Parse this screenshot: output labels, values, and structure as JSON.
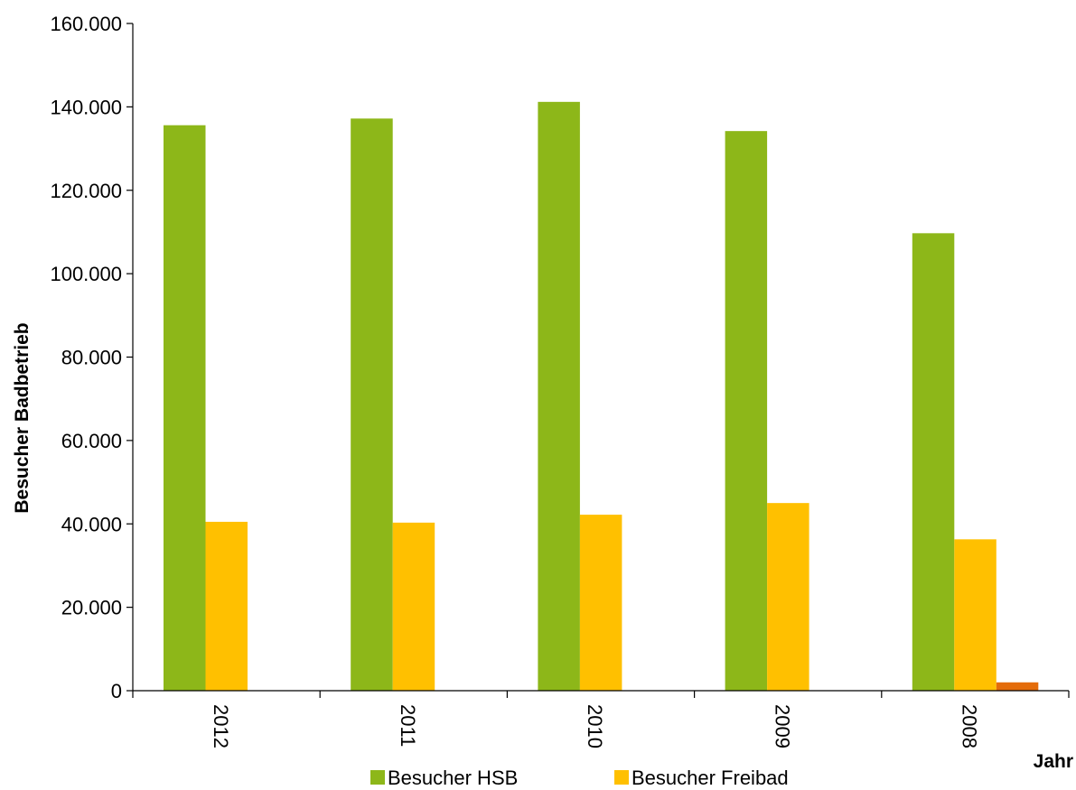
{
  "chart_data": {
    "type": "bar",
    "title": "",
    "xlabel": "Jahr",
    "ylabel": "Besucher Badbetrieb",
    "categories": [
      "2012",
      "2011",
      "2010",
      "2009",
      "2008"
    ],
    "ylim": [
      0,
      160000
    ],
    "yticks": [
      0,
      20000,
      40000,
      60000,
      80000,
      100000,
      120000,
      140000,
      160000
    ],
    "ytick_labels": [
      "0",
      "20.000",
      "40.000",
      "60.000",
      "80.000",
      "100.000",
      "120.000",
      "140.000",
      "160.000"
    ],
    "grid": false,
    "legend_position": "bottom",
    "series": [
      {
        "name": "Besucher HSB",
        "color": "#8DB719",
        "values": [
          135600,
          137200,
          141200,
          134200,
          109700
        ]
      },
      {
        "name": "Besucher Freibad",
        "color": "#FFC000",
        "values": [
          40500,
          40300,
          42200,
          45000,
          36300
        ]
      },
      {
        "name": "",
        "color": "#E46C0A",
        "values": [
          0,
          0,
          0,
          0,
          2000
        ]
      }
    ]
  }
}
